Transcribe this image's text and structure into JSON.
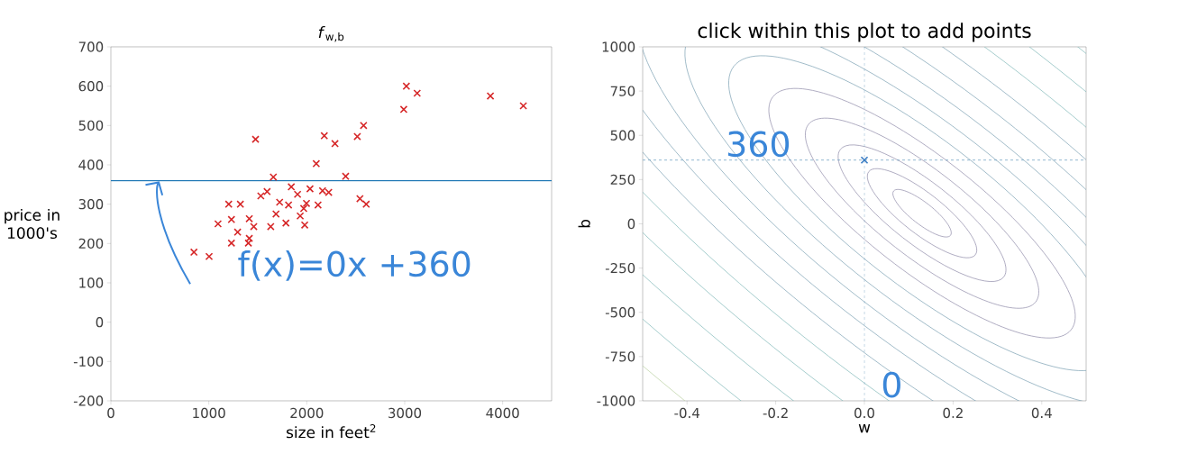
{
  "chart_data": [
    {
      "type": "scatter",
      "title": "*f*$_{w,b}$",
      "xlabel": "size in feet$^{2}$",
      "ylabel": "price in 1000's",
      "annotations": [
        "f(x)=0x +360"
      ],
      "xlim": [
        0,
        4500
      ],
      "ylim": [
        -200,
        700
      ],
      "xticks": [
        0,
        1000,
        2000,
        3000,
        4000
      ],
      "yticks": [
        -200,
        -100,
        0,
        100,
        200,
        300,
        400,
        500,
        600,
        700
      ],
      "series": [
        {
          "marker": "cross",
          "color": "#d62728",
          "x": [
            848,
            1003,
            1094,
            1203,
            1322,
            1231,
            1231,
            1294,
            1413,
            1413,
            1459,
            1404,
            1632,
            1477,
            1531,
            1595,
            1659,
            1787,
            1814,
            1842,
            1906,
            1933,
            1979,
            1969,
            2033,
            1997,
            2097,
            2161,
            2179,
            2288,
            2115,
            2224,
            2397,
            2516,
            2580,
            2543,
            2607,
            2990,
            3017,
            3127,
            3875,
            4211,
            1686,
            1723
          ],
          "values": [
            178,
            167,
            250,
            300,
            300,
            261,
            201,
            229,
            263,
            213,
            243,
            201,
            243,
            465,
            321,
            332,
            369,
            252,
            298,
            344,
            325,
            270,
            247,
            289,
            339,
            302,
            403,
            334,
            474,
            454,
            298,
            330,
            371,
            472,
            500,
            314,
            300,
            541,
            600,
            582,
            575,
            550,
            275,
            305
          ]
        },
        {
          "type": "line",
          "color": "#1f77b4",
          "x": [
            0,
            4500
          ],
          "values": [
            360,
            360
          ]
        }
      ]
    },
    {
      "type": "scatter",
      "title": "click within this plot to add points",
      "xlabel": "w",
      "ylabel": "b",
      "annotations": [
        {
          "text": "360",
          "x": -0.32,
          "y": 360
        },
        "0"
      ],
      "xlim": [
        -0.5,
        0.5
      ],
      "ylim": [
        -1000,
        1000
      ],
      "xticks": [
        -0.4,
        -0.2,
        {
          "value": 0,
          "label": "0.0"
        },
        0.2,
        0.4
      ],
      "yticks": [
        -1000,
        -750,
        -500,
        -250,
        0,
        250,
        500,
        750,
        1000
      ],
      "ref_lines": [
        {
          "axis": "x",
          "value": 0,
          "color": "#6f9fc0",
          "line_style": "dashed"
        },
        {
          "axis": "y",
          "value": 360,
          "color": "#6f9fc0",
          "line_style": "dashed"
        }
      ],
      "series": [
        {
          "marker": "cross",
          "color": "#3a7dc4",
          "x": [
            0
          ],
          "values": [
            360
          ]
        }
      ]
    }
  ]
}
